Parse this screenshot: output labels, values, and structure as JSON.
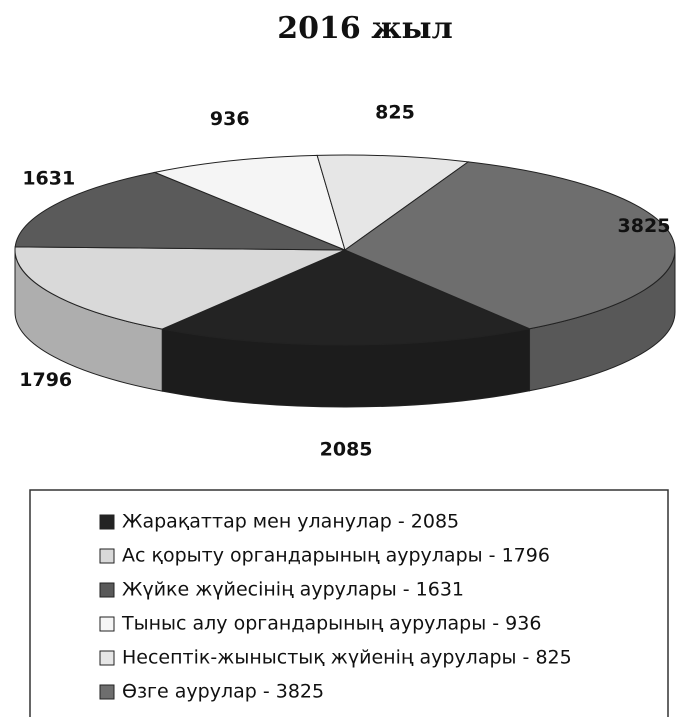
{
  "chart_data": {
    "type": "pie",
    "title": "2016 жыл",
    "categories": [
      "Жарақаттар мен уланулар - 2085",
      "Ас қорыту органдарының аурулары - 1796",
      "Жүйке жүйесінің аурулары - 1631",
      "Тыныс алу органдарының аурулары - 936",
      "Несептік-жыныстық жүйенің аурулары - 825",
      "Өзге аурулар - 3825"
    ],
    "values": [
      2085,
      1796,
      1631,
      936,
      825,
      3825
    ],
    "colors": [
      "#232323",
      "#d9d9d9",
      "#5a5a5a",
      "#f5f5f5",
      "#e6e6e6",
      "#6e6e6e"
    ],
    "legend": "bottom"
  }
}
